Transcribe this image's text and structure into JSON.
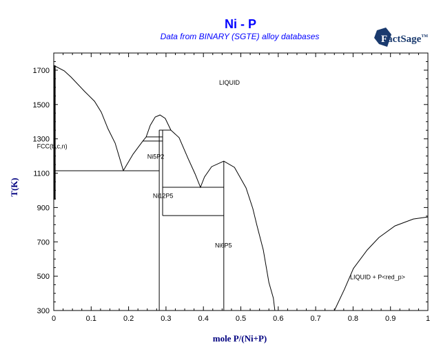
{
  "chart_data": {
    "type": "line",
    "title": "Ni - P",
    "subtitle": "Data from BINARY (SGTE) alloy databases",
    "logo": "FactSage",
    "logo_mark": "TM",
    "xlabel": "mole P/(Ni+P)",
    "ylabel": "T(K)",
    "xlim": [
      0,
      1
    ],
    "ylim": [
      300,
      1800
    ],
    "xticks": [
      0,
      0.1,
      0.2,
      0.3,
      0.4,
      0.5,
      0.6,
      0.7,
      0.8,
      0.9,
      1
    ],
    "xtick_labels": [
      "0",
      "0.1",
      "0.2",
      "0.3",
      "0.4",
      "0.5",
      "0.6",
      "0.7",
      "0.8",
      "0.9",
      "1"
    ],
    "yticks": [
      300,
      500,
      700,
      900,
      1100,
      1300,
      1500,
      1700
    ],
    "ytick_labels": [
      "300",
      "500",
      "700",
      "900",
      "1100",
      "1300",
      "1500",
      "1700"
    ],
    "grid": false,
    "colors": {
      "title": "#0000ff",
      "axis_label": "#000080",
      "logo": "#1a3a6e",
      "line": "#000000"
    },
    "lines": [
      {
        "name": "ni-liquidus",
        "points": [
          [
            0,
            1728
          ],
          [
            0.028,
            1696
          ],
          [
            0.046,
            1660
          ],
          [
            0.083,
            1575
          ],
          [
            0.109,
            1519
          ],
          [
            0.127,
            1455
          ],
          [
            0.145,
            1359
          ],
          [
            0.164,
            1275
          ],
          [
            0.186,
            1115
          ]
        ]
      },
      {
        "name": "ni5p2-liquidus",
        "points": [
          [
            0.186,
            1115
          ],
          [
            0.212,
            1211
          ],
          [
            0.238,
            1287
          ],
          [
            0.247,
            1311
          ],
          [
            0.258,
            1379
          ],
          [
            0.271,
            1427
          ],
          [
            0.284,
            1439
          ],
          [
            0.298,
            1419
          ],
          [
            0.313,
            1351
          ]
        ]
      },
      {
        "name": "ni12p5-ni6p5-liquidus",
        "points": [
          [
            0.313,
            1351
          ],
          [
            0.335,
            1307
          ],
          [
            0.359,
            1186
          ],
          [
            0.378,
            1094
          ],
          [
            0.392,
            1018
          ],
          [
            0.403,
            1078
          ],
          [
            0.422,
            1138
          ],
          [
            0.4545,
            1170
          ],
          [
            0.483,
            1134
          ],
          [
            0.514,
            1014
          ],
          [
            0.532,
            894
          ],
          [
            0.543,
            797
          ],
          [
            0.56,
            653
          ],
          [
            0.575,
            464
          ],
          [
            0.587,
            372
          ],
          [
            0.591,
            300
          ]
        ]
      },
      {
        "name": "p-liquidus",
        "points": [
          [
            0.75,
            300
          ],
          [
            0.777,
            424
          ],
          [
            0.801,
            545
          ],
          [
            0.838,
            653
          ],
          [
            0.869,
            725
          ],
          [
            0.912,
            793
          ],
          [
            0.961,
            833
          ],
          [
            1.0,
            845
          ]
        ]
      },
      {
        "name": "fcc-solvus",
        "points": [
          [
            0.003,
            1728
          ],
          [
            0.003,
            946
          ]
        ]
      },
      {
        "name": "eutectic-1114",
        "points": [
          [
            0,
            1114
          ],
          [
            0.282,
            1114
          ]
        ]
      },
      {
        "name": "invariant-1287",
        "points": [
          [
            0.238,
            1287
          ],
          [
            0.291,
            1287
          ]
        ]
      },
      {
        "name": "invariant-1311",
        "points": [
          [
            0.247,
            1311
          ],
          [
            0.291,
            1311
          ]
        ]
      },
      {
        "name": "invariant-1351",
        "points": [
          [
            0.282,
            1351
          ],
          [
            0.313,
            1351
          ]
        ]
      },
      {
        "name": "ni5p2-line",
        "points": [
          [
            0.282,
            1351
          ],
          [
            0.282,
            300
          ]
        ]
      },
      {
        "name": "ni12p5-line",
        "points": [
          [
            0.291,
            1351
          ],
          [
            0.291,
            853
          ]
        ]
      },
      {
        "name": "invariant-1018",
        "points": [
          [
            0.291,
            1018
          ],
          [
            0.4545,
            1018
          ]
        ]
      },
      {
        "name": "invariant-853",
        "points": [
          [
            0.291,
            853
          ],
          [
            0.4545,
            853
          ]
        ]
      },
      {
        "name": "ni6p5-line",
        "points": [
          [
            0.4545,
            1170
          ],
          [
            0.4545,
            300
          ]
        ]
      }
    ],
    "annotations": [
      {
        "text": "LIQUID",
        "x": 0.442,
        "y": 1616
      },
      {
        "text": "FCC(b,c,n)",
        "x": -0.045,
        "y": 1244
      },
      {
        "text": "Ni5P2",
        "x": 0.25,
        "y": 1184
      },
      {
        "text": "Ni12P5",
        "x": 0.265,
        "y": 955
      },
      {
        "text": "Ni6P5",
        "x": 0.431,
        "y": 666
      },
      {
        "text": "LIQUID + P<red_p>",
        "x": 0.792,
        "y": 483
      }
    ]
  }
}
